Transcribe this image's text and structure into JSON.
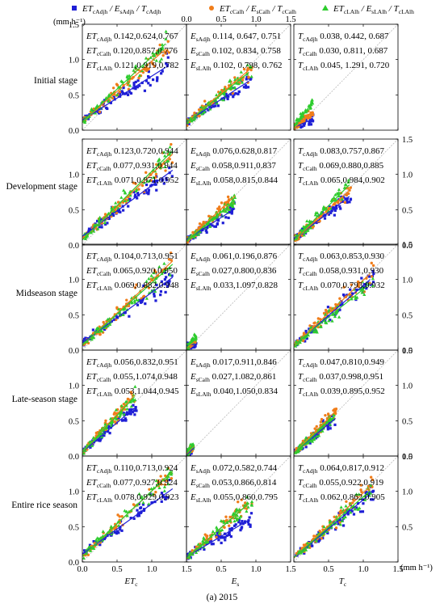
{
  "figure": {
    "caption": "(a) 2015",
    "unit_top_left": "(mm h⁻¹)",
    "unit_bottom_right": "(mm h⁻¹)",
    "x_axis_labels": [
      {
        "main": "ET",
        "sub": "c"
      },
      {
        "main": "E",
        "sub": "s"
      },
      {
        "main": "T",
        "sub": "c"
      }
    ],
    "row_labels": [
      "Initial stage",
      "Development stage",
      "Midseason stage",
      "Late-season stage",
      "Entire rice season"
    ],
    "colors": {
      "Adjh": "#1f1fd6",
      "Calh": "#f07d1a",
      "LAlh": "#2ecc2e",
      "one_to_one": "#b8b8b8"
    },
    "legend": [
      {
        "key": "Adjh",
        "marker": "square",
        "parts": [
          [
            "ET",
            "cAdjh"
          ],
          [
            "/ E",
            "sAdjh"
          ],
          [
            "/ T",
            "cAdjh"
          ]
        ]
      },
      {
        "key": "Calh",
        "marker": "circle",
        "parts": [
          [
            "ET",
            "cCalh"
          ],
          [
            "/ E",
            "sCalh"
          ],
          [
            "/ T",
            "cCalh"
          ]
        ]
      },
      {
        "key": "LAlh",
        "marker": "triangle",
        "parts": [
          [
            "ET",
            "cLAlh"
          ],
          [
            "/ E",
            "sLAlh"
          ],
          [
            "/ T",
            "cLAlh"
          ]
        ]
      }
    ]
  },
  "chart_data": {
    "type": "scatter",
    "title": "",
    "xlim": [
      0,
      1.5
    ],
    "ylim": [
      0,
      1.5
    ],
    "xticks": [
      "0.0",
      "0.5",
      "1.0",
      "1.5"
    ],
    "yticks": [
      "0.0",
      "0.5",
      "1.0",
      "1.5"
    ],
    "top_xticks": [
      "0.0",
      "0.5",
      "1.0",
      "1.5"
    ],
    "right_yticks": [
      "0.0",
      "0.5",
      "1.0",
      "1.5"
    ],
    "note": "Each stat triple is: intercept, slope, R² of the fitted line for the series.",
    "panels": [
      {
        "row": 0,
        "col": 0,
        "var": "ET",
        "stats": [
          {
            "label": [
              "ET",
              "cAdjh"
            ],
            "values": "0.142,0.624,0.767",
            "intercept": 0.142,
            "slope": 0.624
          },
          {
            "label": [
              "ET",
              "cCalh"
            ],
            "values": "0.120,0.857,0.776",
            "intercept": 0.12,
            "slope": 0.857
          },
          {
            "label": [
              "ET",
              "cLAlh"
            ],
            "values": "0.121,0.919,0.782",
            "intercept": 0.121,
            "slope": 0.919
          }
        ],
        "x_range": [
          0.02,
          1.25
        ],
        "fit_range": [
          0.0,
          1.2
        ]
      },
      {
        "row": 0,
        "col": 1,
        "var": "E",
        "stats": [
          {
            "label": [
              "E",
              "sAdjh"
            ],
            "values": "0.114, 0.647, 0.751",
            "intercept": 0.114,
            "slope": 0.647
          },
          {
            "label": [
              "E",
              "sCalh"
            ],
            "values": "0.102, 0.834, 0.758",
            "intercept": 0.102,
            "slope": 0.834
          },
          {
            "label": [
              "E",
              "sLAlh"
            ],
            "values": "0.102, 0.798, 0.762",
            "intercept": 0.102,
            "slope": 0.798
          }
        ],
        "x_range": [
          0.01,
          0.95
        ],
        "fit_range": [
          0.0,
          0.9
        ]
      },
      {
        "row": 0,
        "col": 2,
        "var": "T",
        "stats": [
          {
            "label": [
              "T",
              "cAdjh"
            ],
            "values": "0.038, 0.442, 0.687",
            "intercept": 0.038,
            "slope": 0.442
          },
          {
            "label": [
              "T",
              "cCalh"
            ],
            "values": "0.030, 0.811, 0.687",
            "intercept": 0.03,
            "slope": 0.811
          },
          {
            "label": [
              "T",
              "cLAlh"
            ],
            "values": "0.045, 1.291, 0.720",
            "intercept": 0.045,
            "slope": 1.291
          }
        ],
        "x_range": [
          0.0,
          0.28
        ],
        "fit_range": [
          0.0,
          0.25
        ]
      },
      {
        "row": 1,
        "col": 0,
        "var": "ET",
        "stats": [
          {
            "label": [
              "ET",
              "cAdjh"
            ],
            "values": "0.123,0.720,0.944",
            "intercept": 0.123,
            "slope": 0.72
          },
          {
            "label": [
              "ET",
              "cCalh"
            ],
            "values": "0.077,0.931,0.944",
            "intercept": 0.077,
            "slope": 0.931
          },
          {
            "label": [
              "ET",
              "cLAlh"
            ],
            "values": "0.071,0.971,0.952",
            "intercept": 0.071,
            "slope": 0.971
          }
        ],
        "x_range": [
          0.02,
          1.3
        ],
        "fit_range": [
          0.0,
          1.3
        ]
      },
      {
        "row": 1,
        "col": 1,
        "var": "E",
        "stats": [
          {
            "label": [
              "E",
              "sAdjh"
            ],
            "values": "0.076,0.628,0.817",
            "intercept": 0.076,
            "slope": 0.628
          },
          {
            "label": [
              "E",
              "sCalh"
            ],
            "values": "0.058,0.911,0.837",
            "intercept": 0.058,
            "slope": 0.911
          },
          {
            "label": [
              "E",
              "sLAlh"
            ],
            "values": "0.058,0.815,0.844",
            "intercept": 0.058,
            "slope": 0.815
          }
        ],
        "x_range": [
          0.01,
          0.7
        ],
        "fit_range": [
          0.0,
          0.7
        ]
      },
      {
        "row": 1,
        "col": 2,
        "var": "T",
        "stats": [
          {
            "label": [
              "T",
              "cAdjh"
            ],
            "values": "0.083,0.757,0.867",
            "intercept": 0.083,
            "slope": 0.757
          },
          {
            "label": [
              "T",
              "cCalh"
            ],
            "values": "0.069,0.880,0.885",
            "intercept": 0.069,
            "slope": 0.88
          },
          {
            "label": [
              "T",
              "cLAlh"
            ],
            "values": "0.065,0.984,0.902",
            "intercept": 0.065,
            "slope": 0.984
          }
        ],
        "x_range": [
          0.02,
          0.82
        ],
        "fit_range": [
          0.0,
          0.8
        ]
      },
      {
        "row": 2,
        "col": 0,
        "var": "ET",
        "stats": [
          {
            "label": [
              "ET",
              "cAdjh"
            ],
            "values": "0.104,0.713,0.951",
            "intercept": 0.104,
            "slope": 0.713
          },
          {
            "label": [
              "ET",
              "cCalh"
            ],
            "values": "0.065,0.920,0.950",
            "intercept": 0.065,
            "slope": 0.92
          },
          {
            "label": [
              "ET",
              "cLAlh"
            ],
            "values": "0.069,0.882,0.948",
            "intercept": 0.069,
            "slope": 0.882
          }
        ],
        "x_range": [
          0.02,
          1.3
        ],
        "fit_range": [
          0.0,
          1.3
        ]
      },
      {
        "row": 2,
        "col": 1,
        "var": "E",
        "stats": [
          {
            "label": [
              "E",
              "sAdjh"
            ],
            "values": "0.061,0.196,0.876",
            "intercept": 0.061,
            "slope": 0.196
          },
          {
            "label": [
              "E",
              "sCalh"
            ],
            "values": "0.027,0.800,0.836",
            "intercept": 0.027,
            "slope": 0.8
          },
          {
            "label": [
              "E",
              "sLAlh"
            ],
            "values": "0.033,1.097,0.828",
            "intercept": 0.033,
            "slope": 1.097
          }
        ],
        "x_range": [
          0.0,
          0.14
        ],
        "fit_range": [
          0.0,
          0.13
        ]
      },
      {
        "row": 2,
        "col": 2,
        "var": "T",
        "stats": [
          {
            "label": [
              "T",
              "cAdjh"
            ],
            "values": "0.063,0.853,0.930",
            "intercept": 0.063,
            "slope": 0.853
          },
          {
            "label": [
              "T",
              "cCalh"
            ],
            "values": "0.058,0.931,0.930",
            "intercept": 0.058,
            "slope": 0.931
          },
          {
            "label": [
              "T",
              "cLAlh"
            ],
            "values": "0.070,0.793,0.932",
            "intercept": 0.07,
            "slope": 0.793
          }
        ],
        "x_range": [
          0.02,
          1.15
        ],
        "fit_range": [
          0.0,
          1.1
        ]
      },
      {
        "row": 3,
        "col": 0,
        "var": "ET",
        "stats": [
          {
            "label": [
              "ET",
              "cAdjh"
            ],
            "values": "0.056,0.832,0.951",
            "intercept": 0.056,
            "slope": 0.832
          },
          {
            "label": [
              "ET",
              "cCalh"
            ],
            "values": "0.055,1.074,0.948",
            "intercept": 0.055,
            "slope": 1.074
          },
          {
            "label": [
              "ET",
              "cLAlh"
            ],
            "values": "0.053,1.044,0.945",
            "intercept": 0.053,
            "slope": 1.044
          }
        ],
        "x_range": [
          0.02,
          0.78
        ],
        "fit_range": [
          0.0,
          0.75
        ]
      },
      {
        "row": 3,
        "col": 1,
        "var": "E",
        "stats": [
          {
            "label": [
              "E",
              "sAdjh"
            ],
            "values": "0.017,0.911,0.846",
            "intercept": 0.017,
            "slope": 0.911
          },
          {
            "label": [
              "E",
              "sCalh"
            ],
            "values": "0.027,1.082,0.861",
            "intercept": 0.027,
            "slope": 1.082
          },
          {
            "label": [
              "E",
              "sLAlh"
            ],
            "values": "0.040,1.050,0.834",
            "intercept": 0.04,
            "slope": 1.05
          }
        ],
        "x_range": [
          0.0,
          0.1
        ],
        "fit_range": [
          0.0,
          0.1
        ]
      },
      {
        "row": 3,
        "col": 2,
        "var": "T",
        "stats": [
          {
            "label": [
              "T",
              "cAdjh"
            ],
            "values": "0.047,0.810,0.949",
            "intercept": 0.047,
            "slope": 0.81
          },
          {
            "label": [
              "T",
              "cCalh"
            ],
            "values": "0.037,0.998,0.951",
            "intercept": 0.037,
            "slope": 0.998
          },
          {
            "label": [
              "T",
              "cLAlh"
            ],
            "values": "0.039,0.895,0.952",
            "intercept": 0.039,
            "slope": 0.895
          }
        ],
        "x_range": [
          0.02,
          0.62
        ],
        "fit_range": [
          0.0,
          0.6
        ]
      },
      {
        "row": 4,
        "col": 0,
        "var": "ET",
        "stats": [
          {
            "label": [
              "ET",
              "cAdjh"
            ],
            "values": "0.110,0.713,0.924",
            "intercept": 0.11,
            "slope": 0.713
          },
          {
            "label": [
              "ET",
              "cCalh"
            ],
            "values": "0.077,0.927,0.924",
            "intercept": 0.077,
            "slope": 0.927
          },
          {
            "label": [
              "ET",
              "cLAlh"
            ],
            "values": "0.078,0.929,0.923",
            "intercept": 0.078,
            "slope": 0.929
          }
        ],
        "x_range": [
          0.02,
          1.3
        ],
        "fit_range": [
          0.0,
          1.3
        ]
      },
      {
        "row": 4,
        "col": 1,
        "var": "E",
        "stats": [
          {
            "label": [
              "E",
              "sAdjh"
            ],
            "values": "0.072,0.582,0.744",
            "intercept": 0.072,
            "slope": 0.582
          },
          {
            "label": [
              "E",
              "sCalh"
            ],
            "values": "0.053,0.866,0.814",
            "intercept": 0.053,
            "slope": 0.866
          },
          {
            "label": [
              "E",
              "sLAlh"
            ],
            "values": "0.055,0.860,0.795",
            "intercept": 0.055,
            "slope": 0.86
          }
        ],
        "x_range": [
          0.01,
          0.95
        ],
        "fit_range": [
          0.0,
          0.9
        ]
      },
      {
        "row": 4,
        "col": 2,
        "var": "T",
        "stats": [
          {
            "label": [
              "T",
              "cAdjh"
            ],
            "values": "0.064,0.817,0.912",
            "intercept": 0.064,
            "slope": 0.817
          },
          {
            "label": [
              "T",
              "cCalh"
            ],
            "values": "0.055,0.922,0.919",
            "intercept": 0.055,
            "slope": 0.922
          },
          {
            "label": [
              "T",
              "cLAlh"
            ],
            "values": "0.062,0.862,0.905",
            "intercept": 0.062,
            "slope": 0.862
          }
        ],
        "x_range": [
          0.02,
          1.15
        ],
        "fit_range": [
          0.0,
          1.1
        ]
      }
    ]
  }
}
